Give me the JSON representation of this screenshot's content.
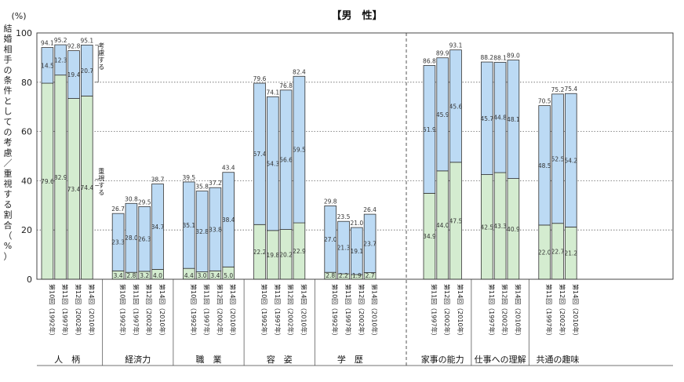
{
  "chart_data": {
    "type": "bar",
    "stacked": true,
    "title": "【男　性】",
    "ylabel": "結婚相手の条件としての考慮／重視する割合（%）",
    "yunit": "(%)",
    "ylim": [
      0,
      100
    ],
    "yticks": [
      0,
      20,
      40,
      60,
      80,
      100
    ],
    "grid": "dotted horizontal",
    "colors": {
      "emphasis": "#d4ecd0",
      "consider": "#bcdaf4",
      "edge": "#333333"
    },
    "annotations": {
      "consider": "考慮する",
      "emphasis": "重視する"
    },
    "groups": [
      {
        "name": "人　柄",
        "bars": [
          {
            "label": "第10回（1992年）",
            "emphasis": 79.6,
            "consider": 14.5,
            "total": 94.1
          },
          {
            "label": "第11回（1997年）",
            "emphasis": 82.9,
            "consider": 12.3,
            "total": 95.2
          },
          {
            "label": "第12回（2002年）",
            "emphasis": 73.4,
            "consider": 19.4,
            "total": 92.8
          },
          {
            "label": "第14回（2010年）",
            "emphasis": 74.4,
            "consider": 20.7,
            "total": 95.1
          }
        ]
      },
      {
        "name": "経済力",
        "bars": [
          {
            "label": "第10回（1992年）",
            "emphasis": 3.4,
            "consider": 23.3,
            "total": 26.7
          },
          {
            "label": "第11回（1997年）",
            "emphasis": 2.8,
            "consider": 28.0,
            "total": 30.8
          },
          {
            "label": "第12回（2002年）",
            "emphasis": 3.2,
            "consider": 26.3,
            "total": 29.5
          },
          {
            "label": "第14回（2010年）",
            "emphasis": 4.0,
            "consider": 34.7,
            "total": 38.7
          }
        ]
      },
      {
        "name": "職　業",
        "bars": [
          {
            "label": "第10回（1992年）",
            "emphasis": 4.4,
            "consider": 35.1,
            "total": 39.5
          },
          {
            "label": "第11回（1997年）",
            "emphasis": 3.0,
            "consider": 32.8,
            "total": 35.8
          },
          {
            "label": "第12回（2002年）",
            "emphasis": 3.4,
            "consider": 33.8,
            "total": 37.2
          },
          {
            "label": "第14回（2010年）",
            "emphasis": 5.0,
            "consider": 38.4,
            "total": 43.4
          }
        ]
      },
      {
        "name": "容　姿",
        "bars": [
          {
            "label": "第10回（1992年）",
            "emphasis": 22.2,
            "consider": 57.4,
            "total": 79.6
          },
          {
            "label": "第11回（1997年）",
            "emphasis": 19.8,
            "consider": 54.3,
            "total": 74.1
          },
          {
            "label": "第12回（2002年）",
            "emphasis": 20.2,
            "consider": 56.6,
            "total": 76.8
          },
          {
            "label": "第14回（2010年）",
            "emphasis": 22.9,
            "consider": 59.5,
            "total": 82.4
          }
        ]
      },
      {
        "name": "学　歴",
        "bars": [
          {
            "label": "第10回（1992年）",
            "emphasis": 2.8,
            "consider": 27.0,
            "total": 29.8
          },
          {
            "label": "第11回（1997年）",
            "emphasis": 2.2,
            "consider": 21.3,
            "total": 23.5
          },
          {
            "label": "第12回（2002年）",
            "emphasis": 1.9,
            "consider": 19.1,
            "total": 21.0
          },
          {
            "label": "第14回（2010年）",
            "emphasis": 2.7,
            "consider": 23.7,
            "total": 26.4
          }
        ]
      },
      {
        "name": "家事の能力",
        "bars": [
          {
            "label": "第11回（1997年）",
            "emphasis": 34.9,
            "consider": 51.9,
            "total": 86.8
          },
          {
            "label": "第12回（2002年）",
            "emphasis": 44.0,
            "consider": 45.9,
            "total": 89.9
          },
          {
            "label": "第14回（2010年）",
            "emphasis": 47.5,
            "consider": 45.6,
            "total": 93.1
          }
        ]
      },
      {
        "name": "仕事への理解",
        "bars": [
          {
            "label": "第11回（1997年）",
            "emphasis": 42.5,
            "consider": 45.7,
            "total": 88.2
          },
          {
            "label": "第12回（2002年）",
            "emphasis": 43.3,
            "consider": 44.8,
            "total": 88.1
          },
          {
            "label": "第14回（2010年）",
            "emphasis": 40.9,
            "consider": 48.1,
            "total": 89.0
          }
        ]
      },
      {
        "name": "共通の趣味",
        "bars": [
          {
            "label": "第11回（1997年）",
            "emphasis": 22.0,
            "consider": 48.5,
            "total": 70.5
          },
          {
            "label": "第12回（2002年）",
            "emphasis": 22.7,
            "consider": 52.5,
            "total": 75.2
          },
          {
            "label": "第14回（2010年）",
            "emphasis": 21.2,
            "consider": 54.2,
            "total": 75.4
          }
        ]
      }
    ]
  }
}
